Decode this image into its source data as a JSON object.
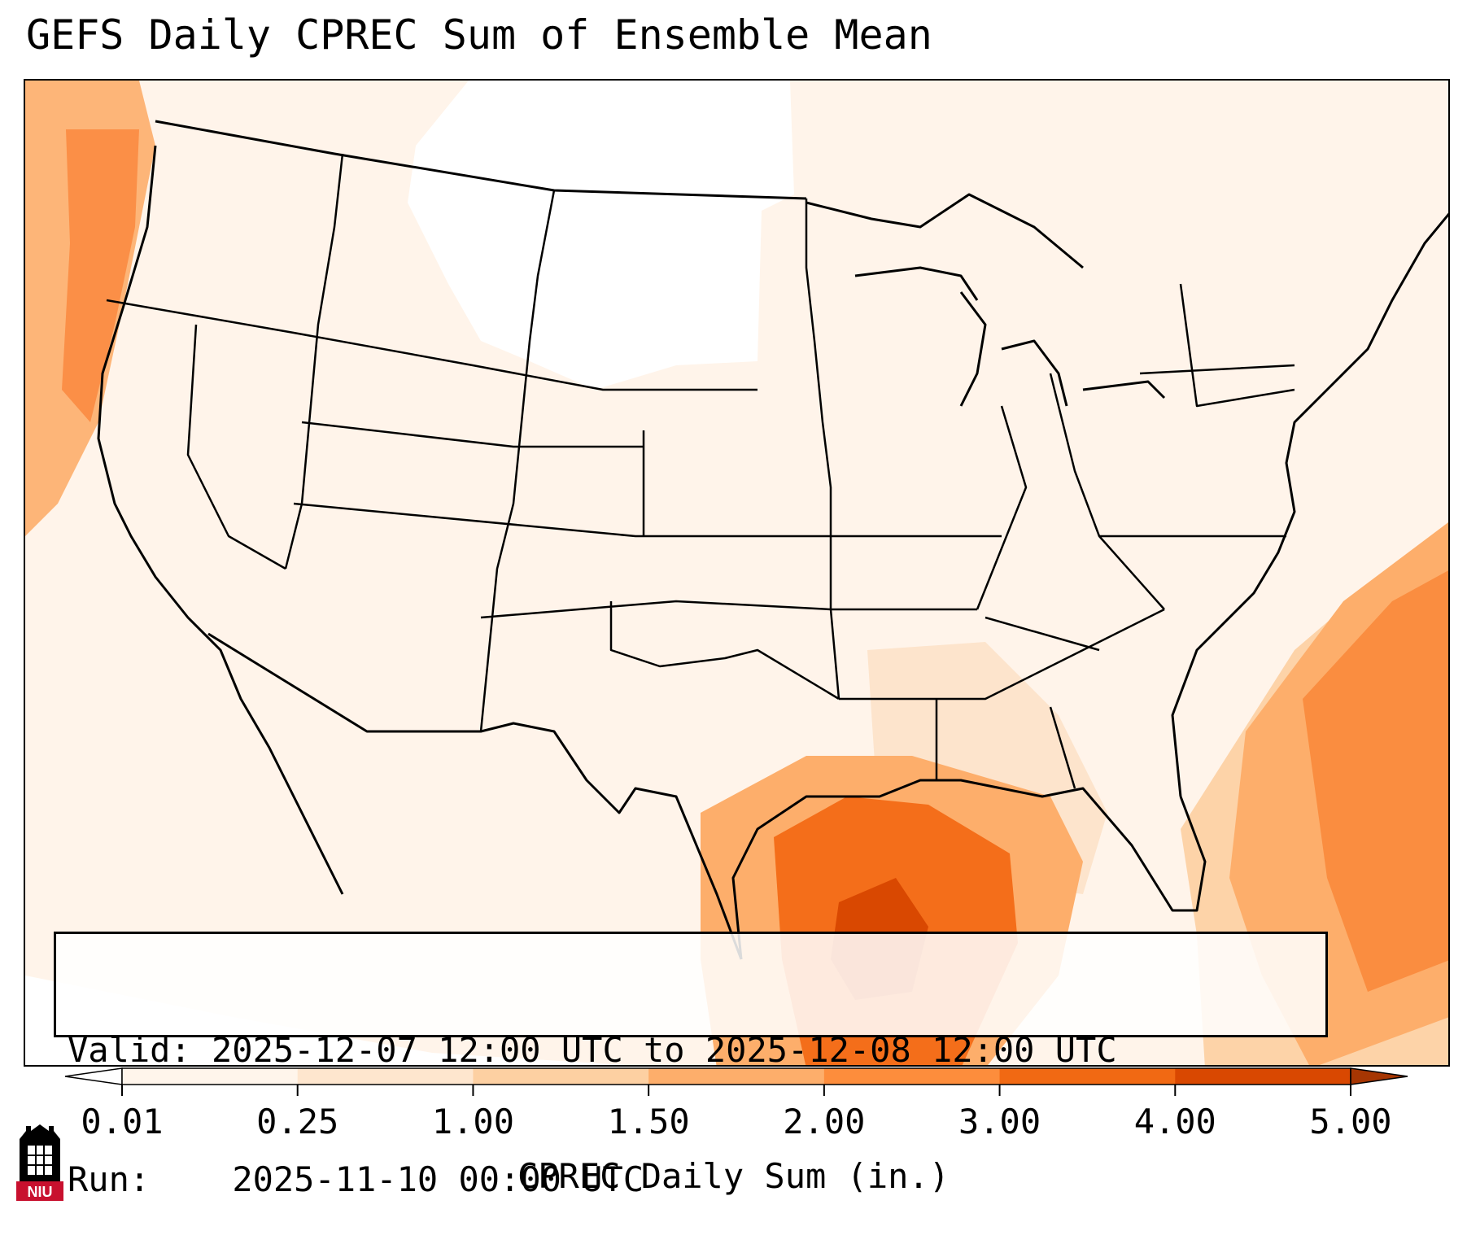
{
  "title": "GEFS Daily CPREC Sum of Ensemble Mean",
  "info": {
    "valid_label": "Valid:",
    "valid_value": "2025-12-07 12:00 UTC to 2025-12-08 12:00 UTC",
    "run_label": "Run:",
    "run_value": "2025-11-10 00:00 UTC"
  },
  "colorbar": {
    "label": "CPREC Daily Sum (in.)",
    "ticks": [
      "0.01",
      "0.25",
      "1.00",
      "1.50",
      "2.00",
      "3.00",
      "4.00",
      "5.00"
    ],
    "colors": [
      "#fff5eb",
      "#fee6ce",
      "#fdd0a2",
      "#fdae6b",
      "#fd8d3c",
      "#f16913",
      "#d94801"
    ],
    "under_color": "#ffffff",
    "over_color": "#a63603",
    "extend": "both"
  },
  "map": {
    "projection": "Lambert Conformal (CONUS)",
    "features": [
      "state borders",
      "country borders",
      "coastlines",
      "Great Lakes"
    ]
  },
  "logo": {
    "text": "NIU",
    "colors": {
      "tower": "#000000",
      "band": "#c8102e"
    }
  }
}
